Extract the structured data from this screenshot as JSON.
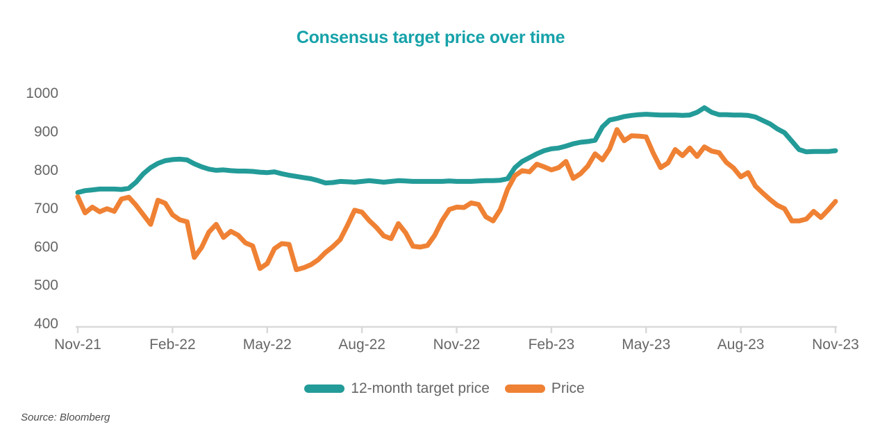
{
  "title": "Consensus target price over time",
  "source_note": "Source: Bloomberg",
  "colors": {
    "title_text": "#17a2a9",
    "target_series": "#239b98",
    "price_series": "#ef8134",
    "axis_text": "#666666",
    "axis_line": "#d9d9d9",
    "legend_text": "#666666",
    "source_text": "#4d4d4d",
    "background": "#ffffff"
  },
  "legend": {
    "items": [
      {
        "label": "12-month target price",
        "color": "#239b98"
      },
      {
        "label": "Price",
        "color": "#ef8134"
      }
    ]
  },
  "chart_data": {
    "type": "line",
    "title": "Consensus target price over time",
    "x_tick_labels": [
      "Nov-21",
      "Feb-22",
      "May-22",
      "Aug-22",
      "Nov-22",
      "Feb-23",
      "May-23",
      "Aug-23",
      "Nov-23"
    ],
    "y_ticks": [
      1000,
      900,
      800,
      700,
      600,
      500,
      400
    ],
    "ylim": [
      400,
      1000
    ],
    "grid": false,
    "legend_position": "bottom-center",
    "x_sampling": "weekly, Nov-2021 through Nov-2023",
    "series": [
      {
        "name": "12-month target price",
        "color": "#239b98",
        "values": [
          741,
          746,
          748,
          750,
          750,
          750,
          749,
          752,
          768,
          790,
          806,
          817,
          824,
          827,
          828,
          826,
          816,
          808,
          802,
          799,
          800,
          798,
          797,
          797,
          796,
          794,
          793,
          795,
          790,
          786,
          783,
          780,
          777,
          772,
          766,
          767,
          770,
          769,
          768,
          770,
          772,
          770,
          768,
          770,
          772,
          771,
          770,
          770,
          770,
          770,
          770,
          771,
          770,
          770,
          770,
          771,
          772,
          772,
          773,
          777,
          806,
          822,
          832,
          842,
          850,
          855,
          857,
          862,
          868,
          872,
          874,
          877,
          912,
          930,
          934,
          939,
          942,
          944,
          945,
          944,
          943,
          943,
          943,
          942,
          943,
          950,
          962,
          950,
          944,
          944,
          943,
          943,
          942,
          938,
          929,
          920,
          907,
          897,
          875,
          853,
          847,
          848,
          848,
          848,
          850
        ]
      },
      {
        "name": "Price",
        "color": "#ef8134",
        "values": [
          730,
          688,
          703,
          691,
          699,
          692,
          724,
          729,
          708,
          683,
          658,
          721,
          713,
          683,
          670,
          665,
          572,
          598,
          638,
          658,
          624,
          640,
          630,
          610,
          602,
          543,
          556,
          595,
          608,
          606,
          540,
          545,
          553,
          566,
          585,
          600,
          618,
          655,
          695,
          690,
          668,
          650,
          628,
          621,
          660,
          636,
          601,
          599,
          603,
          630,
          668,
          697,
          703,
          702,
          714,
          710,
          678,
          667,
          697,
          750,
          785,
          798,
          795,
          815,
          808,
          800,
          806,
          822,
          778,
          790,
          810,
          842,
          826,
          855,
          905,
          876,
          889,
          888,
          886,
          843,
          806,
          818,
          853,
          837,
          857,
          835,
          860,
          849,
          845,
          820,
          805,
          782,
          793,
          758,
          740,
          723,
          708,
          699,
          667,
          667,
          672,
          692,
          676,
          696,
          718
        ]
      }
    ]
  }
}
